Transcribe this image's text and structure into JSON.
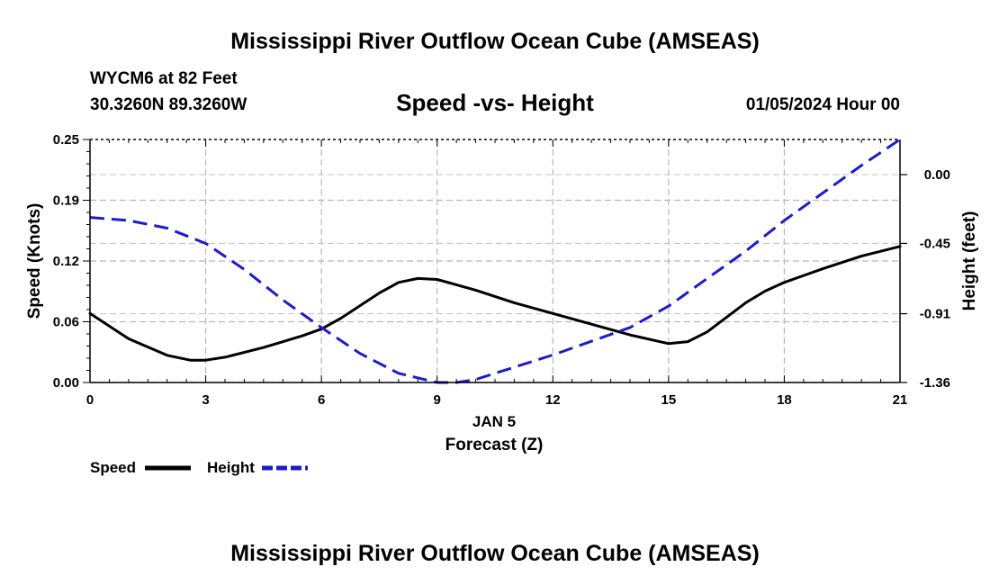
{
  "page": {
    "title_top": "Mississippi River Outflow Ocean Cube (AMSEAS)",
    "title_bottom": "Mississippi River Outflow Ocean Cube (AMSEAS)",
    "station_line": "WYCM6 at 82 Feet",
    "coords_line": "30.3260N  89.3260W",
    "datetime_line": "01/05/2024 Hour 00"
  },
  "chart_data": {
    "type": "line",
    "title": "Speed -vs- Height",
    "xlabel": "Forecast (Z)",
    "xlabel_date": "JAN 5",
    "ylabel": "Speed (Knots)",
    "y2label": "Height (feet)",
    "xlim": [
      0,
      21
    ],
    "ylim": [
      0,
      0.25
    ],
    "y2lim": [
      -1.36,
      0.23
    ],
    "grid": true,
    "x_ticks": [
      0,
      3,
      6,
      9,
      12,
      15,
      18,
      21
    ],
    "x_tick_labels": [
      "0",
      "3",
      "6",
      "9",
      "12",
      "15",
      "18",
      "21"
    ],
    "y_ticks": [
      0.0,
      0.0625,
      0.125,
      0.1875,
      0.25
    ],
    "y_tick_labels": [
      "0.00",
      "0.06",
      "0.12",
      "0.19",
      "0.25"
    ],
    "y2_ticks": [
      0.0,
      -0.45,
      -0.91,
      -1.36
    ],
    "y2_tick_labels": [
      "0.00",
      "-0.45",
      "-0.91",
      "-1.36"
    ],
    "series": [
      {
        "name": "Speed",
        "axis": "left",
        "color": "#000000",
        "style": "solid",
        "x": [
          0,
          1,
          2,
          2.6,
          3,
          3.5,
          4.5,
          5.5,
          6,
          6.5,
          7.5,
          8,
          8.5,
          9,
          10,
          11,
          12,
          13,
          14,
          15,
          15.5,
          16,
          17,
          17.5,
          18,
          19,
          20,
          21
        ],
        "values": [
          0.071,
          0.045,
          0.028,
          0.023,
          0.023,
          0.026,
          0.036,
          0.048,
          0.055,
          0.066,
          0.092,
          0.103,
          0.107,
          0.106,
          0.095,
          0.082,
          0.071,
          0.06,
          0.049,
          0.04,
          0.042,
          0.052,
          0.082,
          0.094,
          0.103,
          0.117,
          0.13,
          0.14
        ]
      },
      {
        "name": "Height",
        "axis": "right",
        "color": "#1c1ccc",
        "style": "dashed",
        "x": [
          0,
          1,
          2,
          3,
          4,
          5,
          6,
          7,
          8,
          9,
          9.5,
          10,
          11,
          12,
          13,
          14,
          15,
          16,
          17,
          18,
          19,
          20,
          21
        ],
        "values": [
          -0.28,
          -0.3,
          -0.35,
          -0.45,
          -0.62,
          -0.82,
          -1.0,
          -1.17,
          -1.3,
          -1.36,
          -1.36,
          -1.34,
          -1.26,
          -1.18,
          -1.09,
          -1.0,
          -0.86,
          -0.68,
          -0.5,
          -0.3,
          -0.12,
          0.06,
          0.23
        ]
      }
    ],
    "legend": {
      "placement": "bottom-left",
      "entries": [
        "Speed",
        "Height"
      ]
    }
  }
}
